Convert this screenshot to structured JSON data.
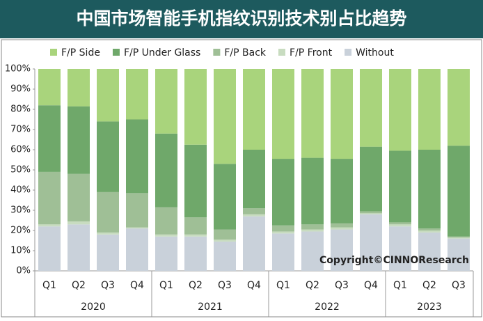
{
  "chart_data": {
    "type": "stacked-bar",
    "title": "中国市场智能手机指纹识别技术别占比趋势",
    "annotation": "Copyright©CINNOResearch",
    "groups": [
      {
        "name": "2020",
        "categories": [
          "Q1",
          "Q2",
          "Q3",
          "Q4"
        ]
      },
      {
        "name": "2021",
        "categories": [
          "Q1",
          "Q2",
          "Q3",
          "Q4"
        ]
      },
      {
        "name": "2022",
        "categories": [
          "Q1",
          "Q2",
          "Q3",
          "Q4"
        ]
      },
      {
        "name": "2023",
        "categories": [
          "Q1",
          "Q2",
          "Q3"
        ]
      }
    ],
    "series": [
      {
        "name": "Without",
        "color": "#c9d1da",
        "values": [
          22,
          23,
          18,
          21,
          17,
          17,
          14.5,
          27,
          18.5,
          19.5,
          20.5,
          28,
          22,
          19,
          16
        ]
      },
      {
        "name": "F/P Front",
        "color": "#c8dcc0",
        "values": [
          1,
          1.5,
          1,
          0.5,
          1,
          1,
          1,
          1,
          1,
          1,
          1,
          0.5,
          1,
          1,
          0.5
        ]
      },
      {
        "name": "F/P Back",
        "color": "#9fbf96",
        "values": [
          26,
          23.5,
          20,
          17,
          13.5,
          8.5,
          5,
          3,
          3,
          2.5,
          2,
          1,
          1,
          1,
          0.5
        ]
      },
      {
        "name": "F/P Under Glass",
        "color": "#6fa86a",
        "values": [
          33,
          33.5,
          35,
          36.5,
          36.5,
          36,
          32.5,
          29,
          33,
          33,
          32,
          32,
          35.5,
          39,
          45
        ]
      },
      {
        "name": "F/P Side",
        "color": "#a9d47c",
        "values": [
          18,
          18.5,
          26,
          25,
          32,
          37.5,
          47,
          40,
          44.5,
          44,
          44.5,
          38.5,
          40.5,
          40,
          38
        ]
      }
    ],
    "legend_order": [
      4,
      3,
      2,
      1,
      0
    ],
    "ylim": [
      0,
      100
    ],
    "yticks": [
      {
        "value": 0,
        "label": "0%"
      },
      {
        "value": 10,
        "label": "10%"
      },
      {
        "value": 20,
        "label": "20%"
      },
      {
        "value": 30,
        "label": "30%"
      },
      {
        "value": 40,
        "label": "40%"
      },
      {
        "value": 50,
        "label": "50%"
      },
      {
        "value": 60,
        "label": "60%"
      },
      {
        "value": 70,
        "label": "70%"
      },
      {
        "value": 80,
        "label": "80%"
      },
      {
        "value": 90,
        "label": "90%"
      },
      {
        "value": 100,
        "label": "100%"
      }
    ]
  }
}
